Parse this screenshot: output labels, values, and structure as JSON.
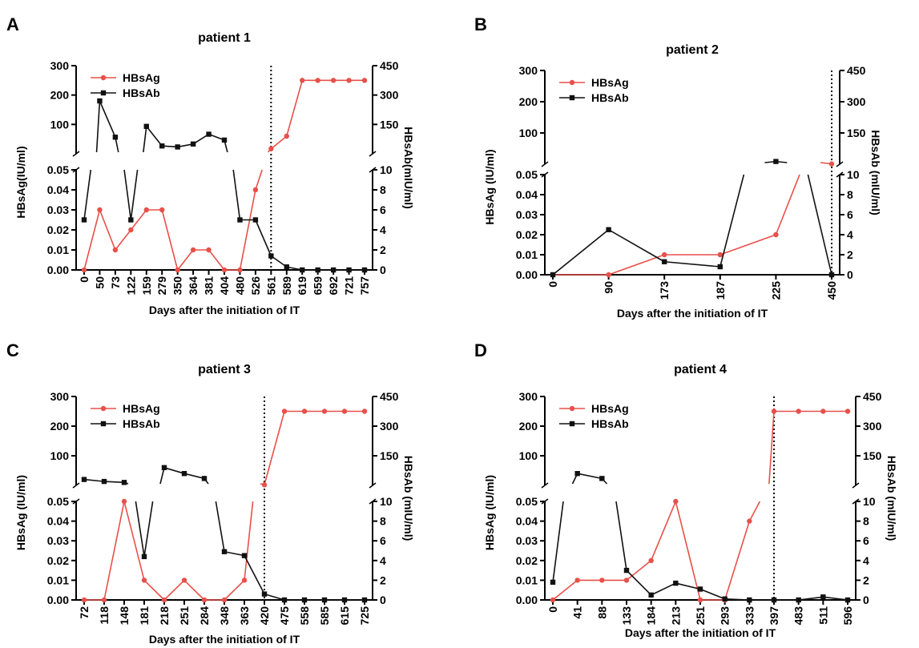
{
  "figure": {
    "xlabel": "Days after the initiation of IT",
    "left_axis_label_style": "HBsAg (IU/ml)"
  },
  "chart_data": [
    {
      "type": "line",
      "panel_letter": "A",
      "title": "patient 1",
      "xlabel": "Days after the initiation of IT",
      "ylabel_left": "HBsAg(IU/ml)",
      "ylabel_right": "HBsAb(mIU/ml)",
      "categories": [
        "0",
        "50",
        "73",
        "122",
        "159",
        "279",
        "350",
        "364",
        "381",
        "404",
        "480",
        "526",
        "561",
        "589",
        "619",
        "659",
        "692",
        "721",
        "757"
      ],
      "y_left_lower": {
        "range": [
          0,
          0.05
        ],
        "ticks": [
          "0.00",
          "0.01",
          "0.02",
          "0.03",
          "0.04",
          "0.05"
        ]
      },
      "y_left_upper": {
        "range": [
          0,
          300
        ],
        "ticks": [
          "100",
          "200",
          "300"
        ]
      },
      "y_right_lower": {
        "range": [
          0,
          10
        ],
        "ticks": [
          "0",
          "2",
          "4",
          "6",
          "8",
          "10"
        ]
      },
      "y_right_upper": {
        "range": [
          0,
          450
        ],
        "ticks": [
          "150",
          "300",
          "450"
        ]
      },
      "vline_after_category": "561",
      "legend": {
        "position": "top-left"
      },
      "series": [
        {
          "name": "HBsAg",
          "color": "#e8504a",
          "marker": "circle",
          "values": [
            0,
            0.03,
            0.01,
            0.02,
            0.03,
            0.03,
            0,
            0.01,
            0.01,
            0,
            0,
            0.04,
            17,
            60,
            250,
            250,
            250,
            250,
            250
          ]
        },
        {
          "name": "HBsAb",
          "color": "#111111",
          "marker": "square",
          "values": [
            5,
            270,
            85,
            5,
            140,
            40,
            35,
            50,
            100,
            70,
            5,
            5,
            1.4,
            0.3,
            0,
            0,
            0,
            0,
            0
          ]
        }
      ]
    },
    {
      "type": "line",
      "panel_letter": "B",
      "title": "patient 2",
      "xlabel": "Days after the initiation of IT",
      "ylabel_left": "HBsAg (IU/ml)",
      "ylabel_right": "HBsAb (mIU/ml)",
      "categories": [
        "0",
        "90",
        "173",
        "187",
        "225",
        "450"
      ],
      "y_left_lower": {
        "range": [
          0,
          0.05
        ],
        "ticks": [
          "0.00",
          "0.01",
          "0.02",
          "0.03",
          "0.04",
          "0.05"
        ]
      },
      "y_left_upper": {
        "range": [
          0,
          300
        ],
        "ticks": [
          "100",
          "200",
          "300"
        ]
      },
      "y_right_lower": {
        "range": [
          0,
          10
        ],
        "ticks": [
          "0",
          "2",
          "4",
          "6",
          "8",
          "10"
        ]
      },
      "y_right_upper": {
        "range": [
          0,
          450
        ],
        "ticks": [
          "150",
          "300",
          "450"
        ]
      },
      "vline_after_category": "450",
      "legend": {
        "position": "top-left"
      },
      "series": [
        {
          "name": "HBsAg",
          "color": "#e8504a",
          "marker": "circle",
          "values": [
            0,
            0,
            0.01,
            0.01,
            0.02,
            1.0
          ]
        },
        {
          "name": "HBsAb",
          "color": "#111111",
          "marker": "square",
          "values": [
            0,
            4.5,
            1.3,
            0.8,
            13,
            0
          ]
        }
      ]
    },
    {
      "type": "line",
      "panel_letter": "C",
      "title": "patient 3",
      "xlabel": "Days after the initiation of IT",
      "ylabel_left": "HBsAg (IU/ml)",
      "ylabel_right": "HBsAb (mIU/ml)",
      "categories": [
        "72",
        "118",
        "148",
        "181",
        "218",
        "251",
        "284",
        "348",
        "363",
        "420",
        "475",
        "558",
        "585",
        "615",
        "725"
      ],
      "y_left_lower": {
        "range": [
          0,
          0.05
        ],
        "ticks": [
          "0.00",
          "0.01",
          "0.02",
          "0.03",
          "0.04",
          "0.05"
        ]
      },
      "y_left_upper": {
        "range": [
          0,
          300
        ],
        "ticks": [
          "100",
          "200",
          "300"
        ]
      },
      "y_right_lower": {
        "range": [
          0,
          10
        ],
        "ticks": [
          "0",
          "2",
          "4",
          "6",
          "8",
          "10"
        ]
      },
      "y_right_upper": {
        "range": [
          0,
          450
        ],
        "ticks": [
          "150",
          "300",
          "450"
        ]
      },
      "vline_after_category": "420",
      "legend": {
        "position": "top-left"
      },
      "series": [
        {
          "name": "HBsAg",
          "color": "#e8504a",
          "marker": "circle",
          "values": [
            0,
            0,
            0.05,
            0.01,
            0,
            0.01,
            0,
            0,
            0.01,
            2,
            250,
            250,
            250,
            250,
            250
          ]
        },
        {
          "name": "HBsAb",
          "color": "#111111",
          "marker": "square",
          "values": [
            30,
            20,
            15,
            4.4,
            90,
            60,
            35,
            4.9,
            4.5,
            0.6,
            0,
            0,
            0,
            0,
            0
          ]
        }
      ]
    },
    {
      "type": "line",
      "panel_letter": "D",
      "title": "patient 4",
      "xlabel": "Days after the initiation of IT",
      "ylabel_left": "HBsAg (IU/ml)",
      "ylabel_right": "HBsAb (mIU/ml)",
      "categories": [
        "0",
        "41",
        "88",
        "133",
        "184",
        "213",
        "251",
        "293",
        "333",
        "397",
        "483",
        "511",
        "596"
      ],
      "y_left_lower": {
        "range": [
          0,
          0.05
        ],
        "ticks": [
          "0.00",
          "0.01",
          "0.02",
          "0.03",
          "0.04",
          "0.05"
        ]
      },
      "y_left_upper": {
        "range": [
          0,
          300
        ],
        "ticks": [
          "100",
          "200",
          "300"
        ]
      },
      "y_right_lower": {
        "range": [
          0,
          10
        ],
        "ticks": [
          "0",
          "2",
          "4",
          "6",
          "8",
          "10"
        ]
      },
      "y_right_upper": {
        "range": [
          0,
          450
        ],
        "ticks": [
          "150",
          "300",
          "450"
        ]
      },
      "vline_after_category": "397",
      "legend": {
        "position": "top-left"
      },
      "series": [
        {
          "name": "HBsAg",
          "color": "#e8504a",
          "marker": "circle",
          "values": [
            0,
            0.01,
            0.01,
            0.01,
            0.02,
            0.05,
            0,
            0,
            0.04,
            250,
            250,
            250,
            250
          ]
        },
        {
          "name": "HBsAb",
          "color": "#111111",
          "marker": "square",
          "values": [
            1.8,
            60,
            35,
            3,
            0.5,
            1.7,
            1.1,
            0.1,
            0,
            0,
            0,
            0.3,
            0
          ]
        }
      ]
    }
  ]
}
